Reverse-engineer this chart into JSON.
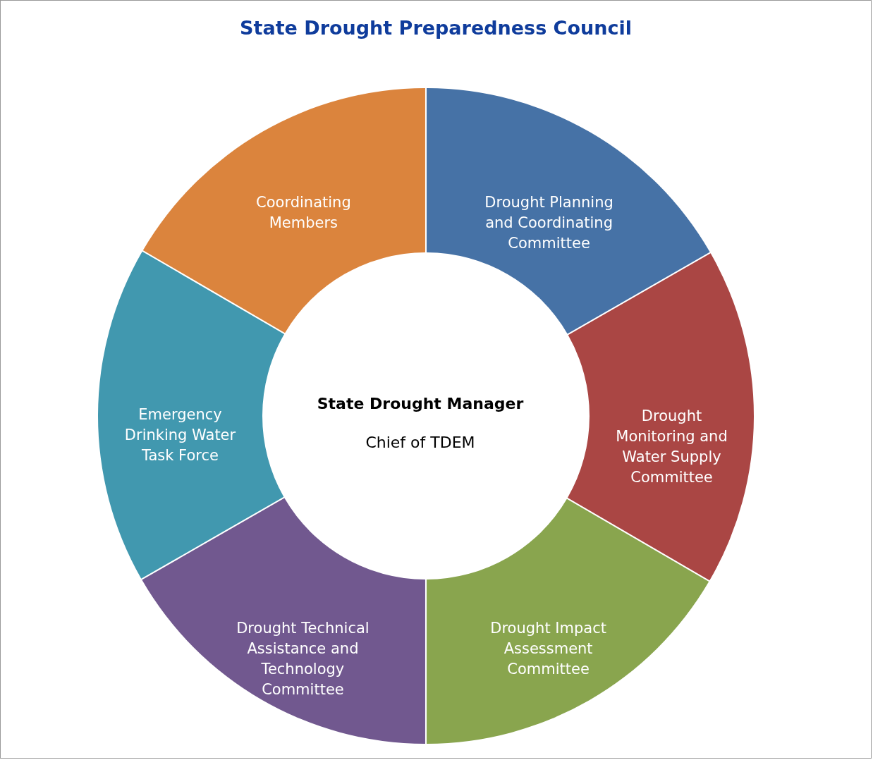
{
  "chart_data": {
    "type": "donut",
    "title": "State Drought Preparedness Council",
    "categories": [
      "Drought Planning and Coordinating Committee",
      "Drought Monitoring and Water Supply Committee",
      "Drought Impact Assessment Committee",
      "Drought Technical Assistance and Technology Committee",
      "Emergency Drinking Water Task Force",
      "Coordinating Members"
    ],
    "values": [
      16.7,
      16.7,
      16.6,
      16.7,
      16.7,
      16.6
    ],
    "colors": [
      "#4672a6",
      "#aa4644",
      "#89a54e",
      "#71588f",
      "#4198af",
      "#db843d"
    ],
    "annotations": [
      "State Drought Manager",
      "Chief of TDEM"
    ],
    "legend": false
  }
}
